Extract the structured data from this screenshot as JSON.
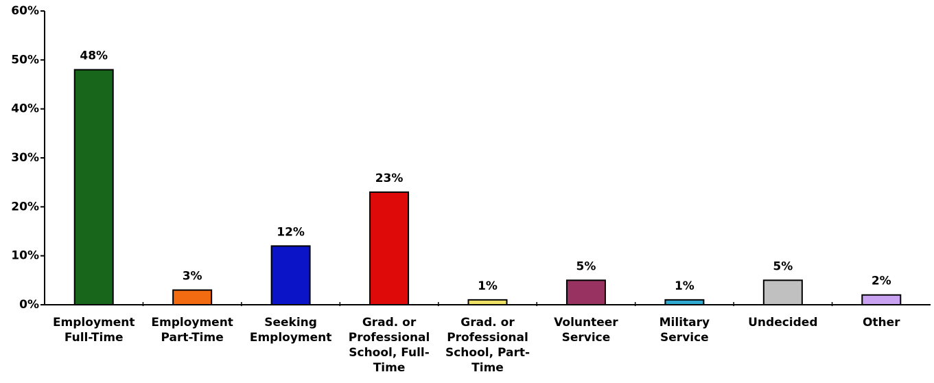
{
  "chart_data": {
    "type": "bar",
    "categories": [
      "Employment Full-Time",
      "Employment Part-Time",
      "Seeking Employment",
      "Grad. or Professional School, Full-Time",
      "Grad. or Professional School, Part-Time",
      "Volunteer Service",
      "Military Service",
      "Undecided",
      "Other"
    ],
    "values": [
      48,
      3,
      12,
      23,
      1,
      5,
      1,
      5,
      2
    ],
    "value_labels": [
      "48%",
      "3%",
      "12%",
      "23%",
      "1%",
      "5%",
      "1%",
      "5%",
      "2%"
    ],
    "colors": [
      "#17661c",
      "#f36b10",
      "#0b14c6",
      "#de0a0a",
      "#eee065",
      "#983261",
      "#2fa9cf",
      "#c0c0c0",
      "#c9a2f2"
    ],
    "ylim": [
      0,
      60
    ],
    "yticks": [
      {
        "value": 0,
        "label": "0%"
      },
      {
        "value": 10,
        "label": "10%"
      },
      {
        "value": 20,
        "label": "20%"
      },
      {
        "value": 30,
        "label": "30%"
      },
      {
        "value": 40,
        "label": "40%"
      },
      {
        "value": 50,
        "label": "50%"
      },
      {
        "value": 60,
        "label": "60%"
      }
    ],
    "grid": false
  }
}
